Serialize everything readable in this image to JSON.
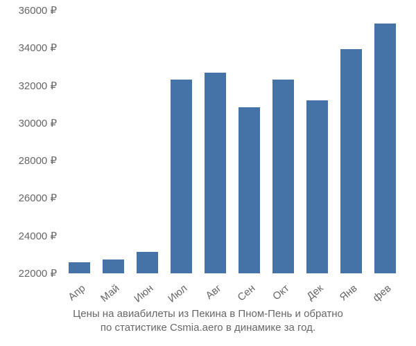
{
  "chart": {
    "type": "bar",
    "categories": [
      "Апр",
      "Май",
      "Июн",
      "Июл",
      "Авг",
      "Сен",
      "Окт",
      "Дек",
      "Янв",
      "фев"
    ],
    "values": [
      22600,
      22750,
      23150,
      32300,
      32700,
      30850,
      32300,
      31200,
      33950,
      35300
    ],
    "bar_color": "#4573a7",
    "background_color": "#ffffff",
    "ylim_min": 22000,
    "ylim_max": 36000,
    "ytick_step": 2000,
    "ytick_labels": [
      "22000 ₽",
      "24000 ₽",
      "26000 ₽",
      "28000 ₽",
      "30000 ₽",
      "32000 ₽",
      "34000 ₽",
      "36000 ₽"
    ],
    "ytick_values": [
      22000,
      24000,
      26000,
      28000,
      30000,
      32000,
      34000,
      36000
    ],
    "bar_width_ratio": 0.62,
    "axis_label_color": "#666666",
    "axis_label_fontsize": 15,
    "caption_line1": "Цены на авиабилеты из Пекина в Пном-Пень и обратно",
    "caption_line2": "по статистике Csmia.aero в динамике за год.",
    "caption_color": "#666666",
    "caption_fontsize": 15,
    "x_label_rotation_deg": -40
  }
}
